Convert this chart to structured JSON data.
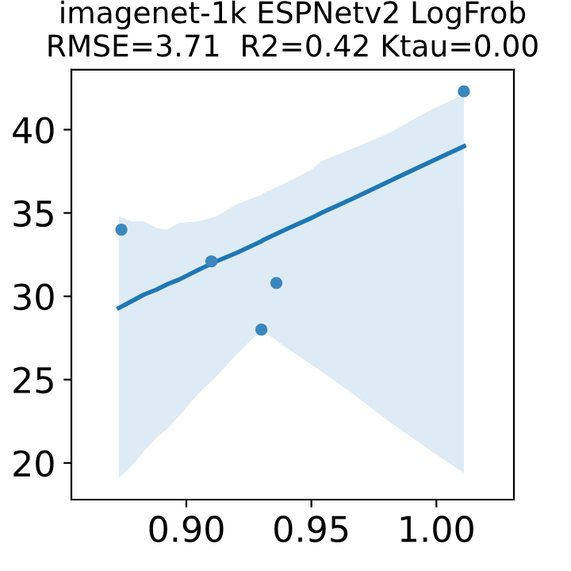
{
  "chart_data": {
    "type": "scatter",
    "title": "imagenet-1k ESPNetv2 LogFrob\nRMSE=3.71  R2=0.42 Ktau=0.00",
    "series": [
      {
        "color": "#3b87bd",
        "marker": "circle",
        "x": [
          0.874,
          0.91,
          0.936,
          0.93,
          1.011
        ],
        "values": [
          34.0,
          32.1,
          30.8,
          28.0,
          42.3
        ]
      },
      {
        "type": "line",
        "color": "#1f77b4",
        "marker": "none",
        "x": [
          0.873,
          0.878,
          0.883,
          0.888,
          0.892,
          0.897,
          0.905,
          0.912,
          0.92,
          0.93,
          0.931,
          0.941,
          0.95,
          0.954,
          0.967,
          0.981,
          0.998,
          1.011
        ],
        "values": [
          29.3,
          29.7,
          30.1,
          30.4,
          30.7,
          31.0,
          31.6,
          32.1,
          32.6,
          33.3,
          33.4,
          34.1,
          34.7,
          35.0,
          35.9,
          36.9,
          38.1,
          39.0
        ],
        "lower": [
          19.1,
          19.8,
          20.7,
          21.5,
          22.0,
          22.8,
          24.2,
          25.2,
          26.5,
          28.0,
          27.9,
          26.8,
          25.9,
          25.5,
          24.1,
          22.5,
          20.7,
          19.4
        ],
        "upper": [
          34.8,
          34.5,
          34.5,
          34.1,
          34.0,
          34.4,
          34.5,
          34.8,
          35.5,
          36.1,
          36.2,
          36.9,
          37.6,
          38.1,
          38.9,
          39.8,
          41.2,
          42.1
        ]
      }
    ],
    "xlim": [
      0.854,
      1.031
    ],
    "xticks": [
      {
        "value": 0.9,
        "label": "0.90"
      },
      {
        "value": 0.95,
        "label": "0.95"
      },
      {
        "value": 1.0,
        "label": "1.00"
      }
    ],
    "ylim": [
      17.8,
      43.6
    ],
    "yticks": [
      20,
      25,
      30,
      35,
      40
    ],
    "grid": false
  }
}
